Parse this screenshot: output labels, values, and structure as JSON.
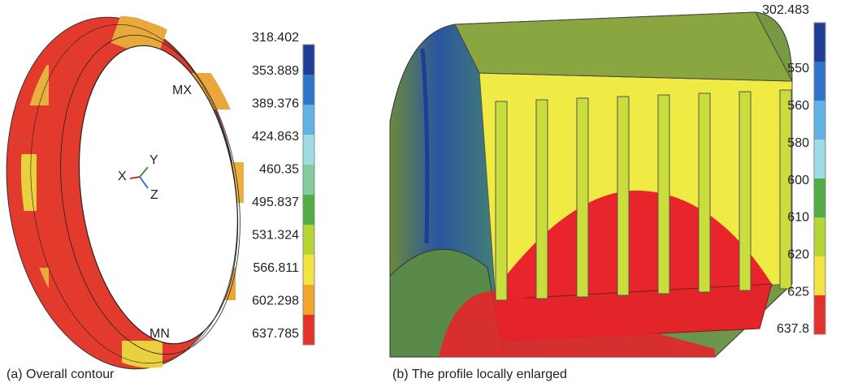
{
  "panels": [
    {
      "caption": "(a) Overall contour",
      "annotations": {
        "max": "MX",
        "min": "MN",
        "axis_x": "X",
        "axis_y": "Y",
        "axis_z": "Z"
      },
      "legend": {
        "labels": [
          "318.402",
          "353.889",
          "389.376",
          "424.863",
          "460.35",
          "495.837",
          "531.324",
          "566.811",
          "602.298",
          "637.785"
        ],
        "colors": [
          "#1f3c96",
          "#2f74c8",
          "#5fb2e4",
          "#9fdbe4",
          "#86cba0",
          "#52ad45",
          "#b5d634",
          "#f4e443",
          "#f1a52a",
          "#e4322b"
        ]
      }
    },
    {
      "caption": "(b) The profile locally enlarged",
      "legend": {
        "labels": [
          "302.483",
          "550",
          "560",
          "580",
          "600",
          "610",
          "620",
          "625",
          "637.8"
        ],
        "colors": [
          "#1f3c96",
          "#2f74c8",
          "#5fb2e4",
          "#9fdbe4",
          "#52ad45",
          "#b5d634",
          "#f4e443",
          "#e4322b"
        ]
      }
    }
  ]
}
